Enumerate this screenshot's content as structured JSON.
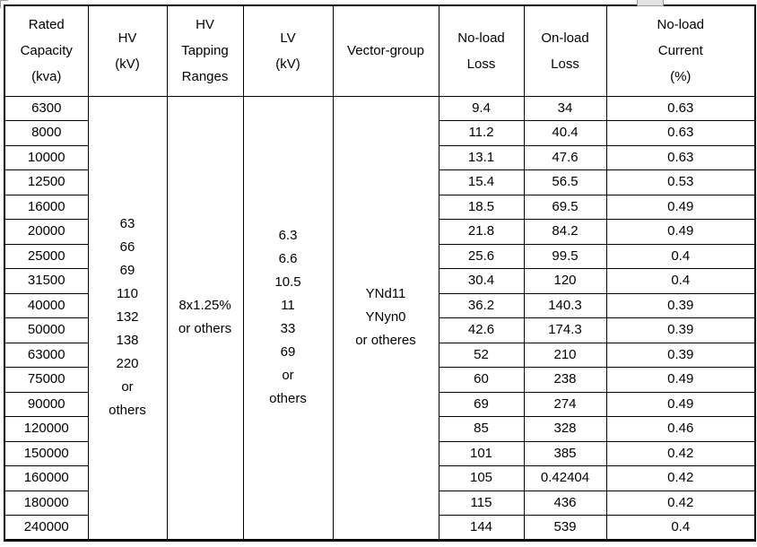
{
  "page": {
    "background_color": "#ffffff",
    "border_color": "#000000",
    "text_color": "#000000",
    "artifact_color": "#e3e3e3"
  },
  "table": {
    "headers": {
      "rated_capacity": "Rated\nCapacity\n(kva)",
      "hv": "HV\n(kV)",
      "hv_tapping": "HV\nTapping\nRanges",
      "lv": "LV\n(kV)",
      "vector_group": "Vector-group",
      "no_load_loss": "No-load\nLoss",
      "on_load_loss": "On-load\nLoss",
      "no_load_current": "No-load\nCurrent\n(%)"
    },
    "merged_cells": {
      "hv_values": [
        "63",
        "66",
        "69",
        "110",
        "132",
        "138",
        "220",
        "or",
        "others"
      ],
      "hv_tapping_ranges": [
        "8x1.25%",
        "or others"
      ],
      "lv_values": [
        "6.3",
        "6.6",
        "10.5",
        "11",
        "33",
        "69",
        "or",
        "others"
      ],
      "vector_groups": [
        "YNd11",
        "YNyn0",
        "or otheres"
      ]
    },
    "rows": [
      {
        "capacity": "6300",
        "no_load_loss": "9.4",
        "on_load_loss": "34",
        "no_load_current": "0.63"
      },
      {
        "capacity": "8000",
        "no_load_loss": "11.2",
        "on_load_loss": "40.4",
        "no_load_current": "0.63"
      },
      {
        "capacity": "10000",
        "no_load_loss": "13.1",
        "on_load_loss": "47.6",
        "no_load_current": "0.63"
      },
      {
        "capacity": "12500",
        "no_load_loss": "15.4",
        "on_load_loss": "56.5",
        "no_load_current": "0.53"
      },
      {
        "capacity": "16000",
        "no_load_loss": "18.5",
        "on_load_loss": "69.5",
        "no_load_current": "0.49"
      },
      {
        "capacity": "20000",
        "no_load_loss": "21.8",
        "on_load_loss": "84.2",
        "no_load_current": "0.49"
      },
      {
        "capacity": "25000",
        "no_load_loss": "25.6",
        "on_load_loss": "99.5",
        "no_load_current": "0.4"
      },
      {
        "capacity": "31500",
        "no_load_loss": "30.4",
        "on_load_loss": "120",
        "no_load_current": "0.4"
      },
      {
        "capacity": "40000",
        "no_load_loss": "36.2",
        "on_load_loss": "140.3",
        "no_load_current": "0.39"
      },
      {
        "capacity": "50000",
        "no_load_loss": "42.6",
        "on_load_loss": "174.3",
        "no_load_current": "0.39"
      },
      {
        "capacity": "63000",
        "no_load_loss": "52",
        "on_load_loss": "210",
        "no_load_current": "0.39"
      },
      {
        "capacity": "75000",
        "no_load_loss": "60",
        "on_load_loss": "238",
        "no_load_current": "0.49"
      },
      {
        "capacity": "90000",
        "no_load_loss": "69",
        "on_load_loss": "274",
        "no_load_current": "0.49"
      },
      {
        "capacity": "120000",
        "no_load_loss": "85",
        "on_load_loss": "328",
        "no_load_current": "0.46"
      },
      {
        "capacity": "150000",
        "no_load_loss": "101",
        "on_load_loss": "385",
        "no_load_current": "0.42"
      },
      {
        "capacity": "160000",
        "no_load_loss": "105",
        "on_load_loss": "0.42404",
        "no_load_current": "0.42"
      },
      {
        "capacity": "180000",
        "no_load_loss": "115",
        "on_load_loss": "436",
        "no_load_current": "0.42"
      },
      {
        "capacity": "240000",
        "no_load_loss": "144",
        "on_load_loss": "539",
        "no_load_current": "0.4"
      }
    ]
  }
}
